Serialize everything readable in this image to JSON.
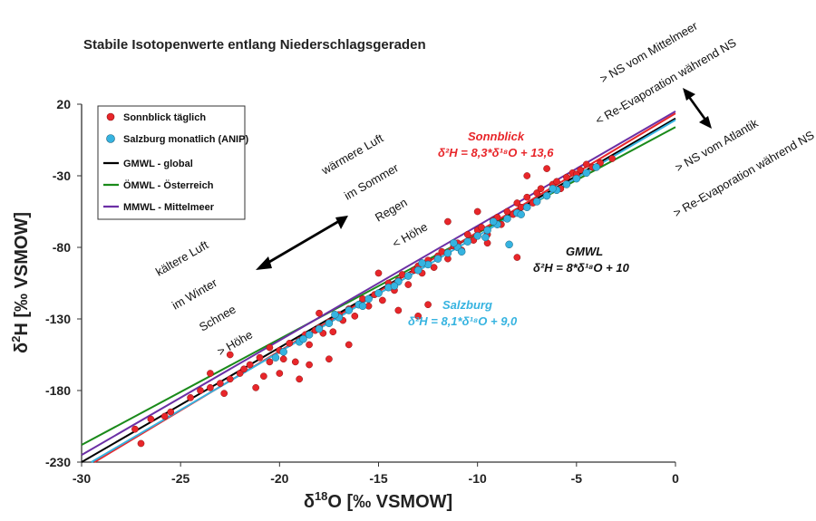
{
  "chart_data": {
    "type": "scatter",
    "title": "Stabile Isotopenwerte entlang Niederschlagsgeraden",
    "xlabel_base": "δ",
    "xlabel_sup": "18",
    "xlabel_rest": "O [‰ VSMOW]",
    "ylabel_base": "δ",
    "ylabel_sup": "2",
    "ylabel_rest": "H [‰ VSMOW]",
    "xlim": [
      -30,
      0
    ],
    "ylim": [
      -230,
      20
    ],
    "x_ticks": [
      -30,
      -25,
      -20,
      -15,
      -10,
      -5,
      0
    ],
    "y_ticks": [
      20,
      -30,
      -80,
      -130,
      -180,
      -230
    ],
    "legend_position": "top-left",
    "series": [
      {
        "name": "Sonnblick täglich",
        "kind": "points",
        "color": "#e8262a",
        "marker_symbol": "●",
        "points": [
          [
            -27,
            -217
          ],
          [
            -27.3,
            -207
          ],
          [
            -26.5,
            -200
          ],
          [
            -25.5,
            -195
          ],
          [
            -25.8,
            -198
          ],
          [
            -24.5,
            -185
          ],
          [
            -24,
            -180
          ],
          [
            -23.5,
            -178
          ],
          [
            -23,
            -175
          ],
          [
            -22.8,
            -182
          ],
          [
            -22.5,
            -172
          ],
          [
            -22,
            -168
          ],
          [
            -21.8,
            -165
          ],
          [
            -21.5,
            -162
          ],
          [
            -21,
            -157
          ],
          [
            -20.8,
            -170
          ],
          [
            -20.5,
            -160
          ],
          [
            -20,
            -152
          ],
          [
            -19.8,
            -158
          ],
          [
            -19.5,
            -147
          ],
          [
            -19.2,
            -160
          ],
          [
            -19,
            -145
          ],
          [
            -18.7,
            -141
          ],
          [
            -18.5,
            -148
          ],
          [
            -18.2,
            -138
          ],
          [
            -18,
            -136
          ],
          [
            -17.8,
            -140
          ],
          [
            -17.5,
            -132
          ],
          [
            -17.3,
            -139
          ],
          [
            -17,
            -127
          ],
          [
            -16.8,
            -131
          ],
          [
            -16.5,
            -123
          ],
          [
            -16.2,
            -128
          ],
          [
            -16,
            -120
          ],
          [
            -15.8,
            -116
          ],
          [
            -15.5,
            -121
          ],
          [
            -15.2,
            -113
          ],
          [
            -15,
            -112
          ],
          [
            -14.8,
            -117
          ],
          [
            -14.5,
            -105
          ],
          [
            -14.2,
            -110
          ],
          [
            -14,
            -103
          ],
          [
            -13.8,
            -99
          ],
          [
            -13.5,
            -106
          ],
          [
            -13.2,
            -96
          ],
          [
            -13,
            -93
          ],
          [
            -12.8,
            -98
          ],
          [
            -12.5,
            -89
          ],
          [
            -12.2,
            -94
          ],
          [
            -12,
            -86
          ],
          [
            -11.8,
            -83
          ],
          [
            -11.5,
            -88
          ],
          [
            -11.2,
            -79
          ],
          [
            -11,
            -77
          ],
          [
            -10.8,
            -82
          ],
          [
            -10.5,
            -71
          ],
          [
            -10.2,
            -75
          ],
          [
            -10,
            -68
          ],
          [
            -9.8,
            -66
          ],
          [
            -9.5,
            -71
          ],
          [
            -9.2,
            -61
          ],
          [
            -9,
            -59
          ],
          [
            -8.8,
            -64
          ],
          [
            -8.5,
            -55
          ],
          [
            -8.2,
            -57
          ],
          [
            -8,
            -49
          ],
          [
            -7.8,
            -52
          ],
          [
            -7.5,
            -45
          ],
          [
            -7.2,
            -49
          ],
          [
            -7,
            -42
          ],
          [
            -6.8,
            -39
          ],
          [
            -6.5,
            -44
          ],
          [
            -6.2,
            -36
          ],
          [
            -6,
            -34
          ],
          [
            -5.8,
            -39
          ],
          [
            -5.5,
            -31
          ],
          [
            -5.2,
            -28
          ],
          [
            -5,
            -29
          ],
          [
            -4.8,
            -26
          ],
          [
            -4.5,
            -22
          ],
          [
            -4.2,
            -24
          ],
          [
            -3.8,
            -21
          ],
          [
            -3.2,
            -18
          ],
          [
            -20,
            -168
          ],
          [
            -19,
            -172
          ],
          [
            -18.5,
            -162
          ],
          [
            -17.5,
            -158
          ],
          [
            -14,
            -124
          ],
          [
            -13,
            -128
          ],
          [
            -12.5,
            -120
          ],
          [
            -8,
            -87
          ],
          [
            -9.5,
            -77
          ],
          [
            -16.5,
            -148
          ],
          [
            -22.5,
            -155
          ],
          [
            -23.5,
            -168
          ],
          [
            -11.5,
            -62
          ],
          [
            -10,
            -55
          ],
          [
            -7.5,
            -30
          ],
          [
            -6.5,
            -25
          ],
          [
            -18,
            -126
          ],
          [
            -15,
            -98
          ],
          [
            -20.5,
            -150
          ],
          [
            -21.2,
            -178
          ]
        ]
      },
      {
        "name": "Salzburg monatlich (ANIP)",
        "kind": "points",
        "color": "#35b3e0",
        "marker_symbol": "●",
        "points": [
          [
            -20.2,
            -157
          ],
          [
            -19.8,
            -153
          ],
          [
            -19,
            -146
          ],
          [
            -18.5,
            -141
          ],
          [
            -18,
            -137
          ],
          [
            -17.5,
            -133
          ],
          [
            -17,
            -129
          ],
          [
            -16.5,
            -124
          ],
          [
            -16,
            -120
          ],
          [
            -15.5,
            -116
          ],
          [
            -15,
            -112
          ],
          [
            -14.5,
            -108
          ],
          [
            -14,
            -104
          ],
          [
            -13.5,
            -100
          ],
          [
            -13,
            -96
          ],
          [
            -12.5,
            -92
          ],
          [
            -12,
            -88
          ],
          [
            -11.5,
            -84
          ],
          [
            -11,
            -80
          ],
          [
            -10.5,
            -76
          ],
          [
            -10,
            -72
          ],
          [
            -9.5,
            -68
          ],
          [
            -9,
            -64
          ],
          [
            -8.5,
            -60
          ],
          [
            -8,
            -56
          ],
          [
            -7.5,
            -52
          ],
          [
            -7,
            -48
          ],
          [
            -6.5,
            -44
          ],
          [
            -6,
            -40
          ],
          [
            -5.5,
            -36
          ],
          [
            -5,
            -32
          ],
          [
            -4.5,
            -28
          ],
          [
            -4,
            -24
          ],
          [
            -8.4,
            -78
          ],
          [
            -9.6,
            -73
          ],
          [
            -10.8,
            -83
          ],
          [
            -12.8,
            -91
          ],
          [
            -14.2,
            -107
          ],
          [
            -15.8,
            -121
          ],
          [
            -17.2,
            -127
          ],
          [
            -18.8,
            -144
          ],
          [
            -11.2,
            -77
          ],
          [
            -9.2,
            -62
          ],
          [
            -7.8,
            -57
          ],
          [
            -6.2,
            -39
          ]
        ]
      },
      {
        "name": "GMWL - global",
        "kind": "line",
        "color": "#000000",
        "slope": 8,
        "intercept": 10
      },
      {
        "name": "ÖMWL - Österreich",
        "kind": "line",
        "color": "#1a8a1a",
        "slope": 7.4,
        "intercept": 4
      },
      {
        "name": "MMWL - Mittelmeer",
        "kind": "line",
        "color": "#6b2fa5",
        "slope": 8,
        "intercept": 15
      },
      {
        "name": "Sonnblick",
        "kind": "line",
        "color": "#e8262a",
        "slope": 8.3,
        "intercept": 13.6
      },
      {
        "name": "Salzburg",
        "kind": "line",
        "color": "#35b3e0",
        "slope": 8.1,
        "intercept": 9.0
      }
    ],
    "equations": [
      {
        "name": "Sonnblick",
        "formula": "δ²H = 8,3*δ¹⁸O + 13,6",
        "color": "#e8262a"
      },
      {
        "name": "GMWL",
        "formula": "δ²H = 8*δ¹⁸O + 10",
        "color": "#111111"
      },
      {
        "name": "Salzburg",
        "formula": "δ²H = 8,1*δ¹⁸O + 9,0",
        "color": "#35b3e0"
      }
    ],
    "annotations_left": [
      "kältere Luft",
      "im Winter",
      "Schnee",
      "> Höhe"
    ],
    "annotations_mid": [
      "wärmere Luft",
      "im Sommer",
      "Regen",
      "< Höhe"
    ],
    "annotations_top_right": [
      "> NS vom Mittelmeer",
      "< Re-Evaporation während NS"
    ],
    "annotations_right": [
      "> NS vom Atlantik",
      "> Re-Evaporation während NS"
    ],
    "grid": false
  }
}
